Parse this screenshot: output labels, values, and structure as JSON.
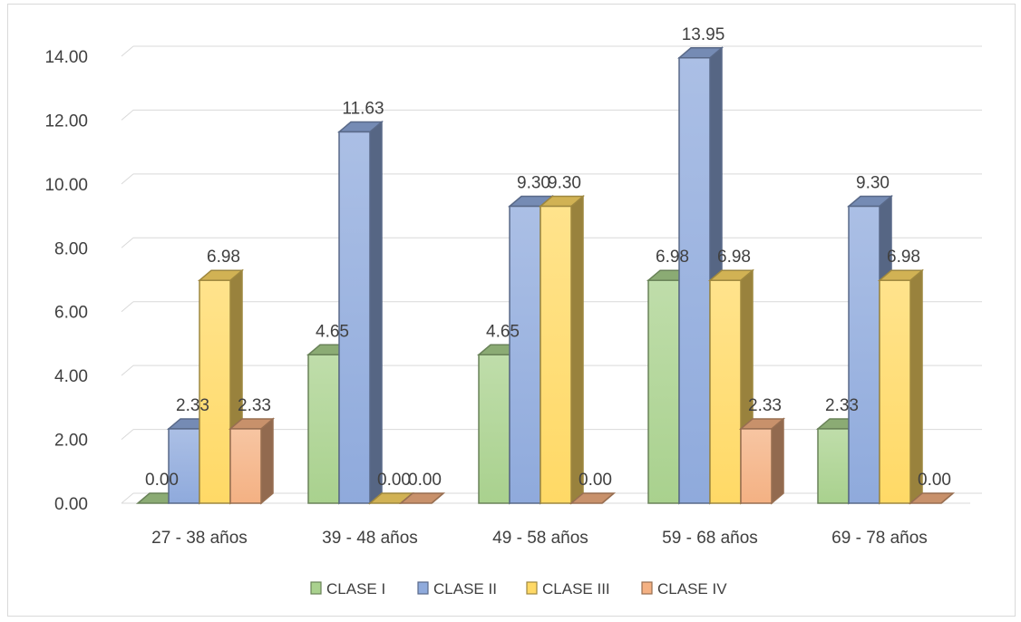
{
  "chart_data": {
    "type": "bar",
    "style": "3d-clustered-column",
    "title": "",
    "xlabel": "",
    "ylabel": "",
    "ylim": [
      0,
      14
    ],
    "y_ticks": [
      0,
      2,
      4,
      6,
      8,
      10,
      12,
      14
    ],
    "y_tick_labels": [
      "0.00",
      "2.00",
      "4.00",
      "6.00",
      "8.00",
      "10.00",
      "12.00",
      "14.00"
    ],
    "grid": true,
    "legend_position": "bottom",
    "categories": [
      "27 - 38 años",
      "39 - 48 años",
      "49 - 58 años",
      "59 - 68 años",
      "69 - 78 años"
    ],
    "series": [
      {
        "name": "CLASE I",
        "color": "#a9d18e",
        "values": [
          0.0,
          4.65,
          4.65,
          6.98,
          2.33
        ],
        "labels": [
          "0.00",
          "4.65",
          "4.65",
          "6.98",
          "2.33"
        ]
      },
      {
        "name": "CLASE II",
        "color": "#8faadc",
        "values": [
          2.33,
          11.63,
          9.3,
          13.95,
          9.3
        ],
        "labels": [
          "2.33",
          "11.63",
          "9.30",
          "13.95",
          "9.30"
        ]
      },
      {
        "name": "CLASE III",
        "color": "#ffd966",
        "values": [
          6.98,
          0.0,
          9.3,
          6.98,
          6.98
        ],
        "labels": [
          "6.98",
          "0.00",
          "9.30",
          "6.98",
          "6.98"
        ]
      },
      {
        "name": "CLASE IV",
        "color": "#f4b183",
        "values": [
          2.33,
          0.0,
          0.0,
          2.33,
          0.0
        ],
        "labels": [
          "2.33",
          "0.00",
          "0.00",
          "2.33",
          "0.00"
        ]
      }
    ]
  }
}
